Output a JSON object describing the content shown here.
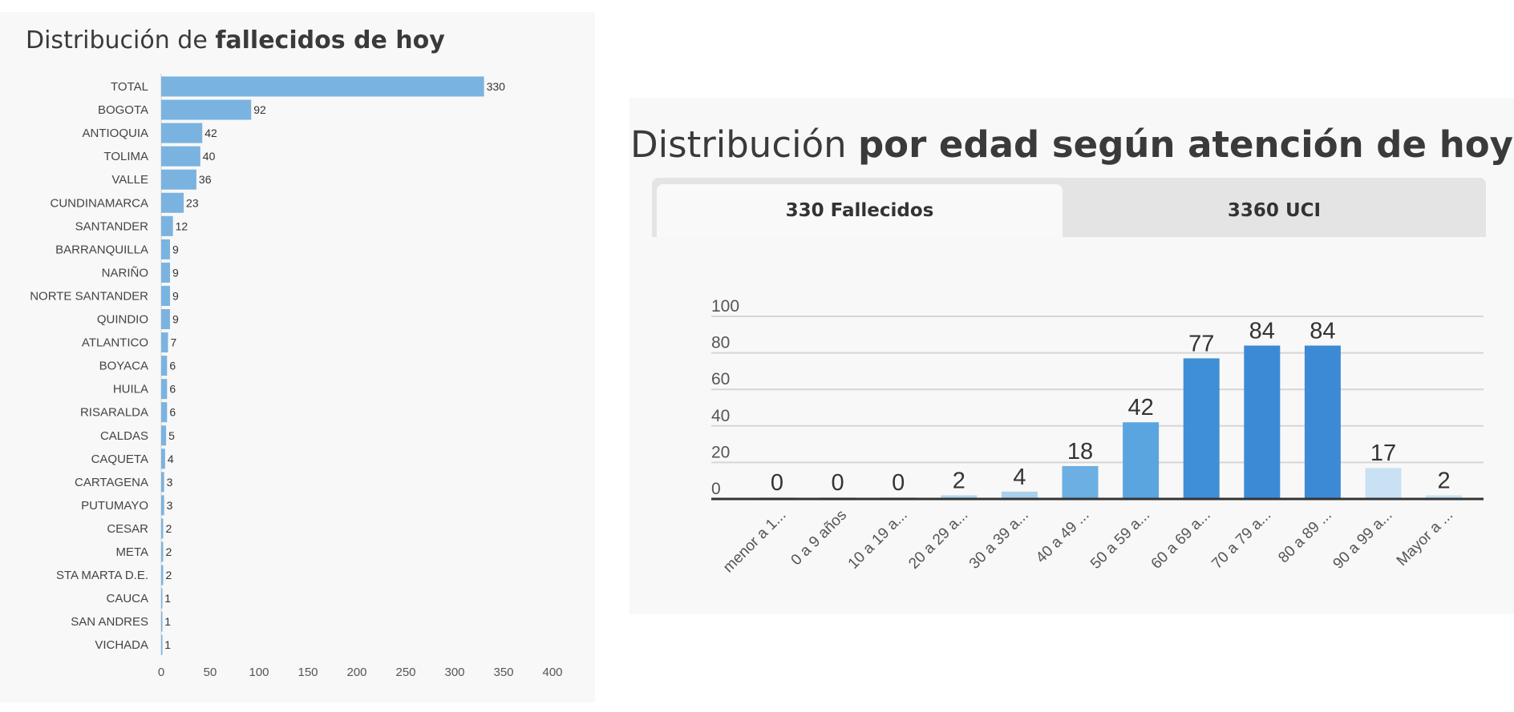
{
  "left": {
    "title_regular": "Distribución de ",
    "title_bold": "fallecidos de hoy"
  },
  "right": {
    "title_regular": "Distribución ",
    "title_bold": "por edad según atención de hoy",
    "tabs": [
      {
        "label": "330 Fallecidos",
        "active": true
      },
      {
        "label": "3360 UCI",
        "active": false
      }
    ]
  },
  "chart_data": [
    {
      "type": "bar",
      "orientation": "horizontal",
      "title": "Distribución de fallecidos de hoy",
      "categories": [
        "TOTAL",
        "BOGOTA",
        "ANTIOQUIA",
        "TOLIMA",
        "VALLE",
        "CUNDINAMARCA",
        "SANTANDER",
        "BARRANQUILLA",
        "NARIÑO",
        "NORTE SANTANDER",
        "QUINDIO",
        "ATLANTICO",
        "BOYACA",
        "HUILA",
        "RISARALDA",
        "CALDAS",
        "CAQUETA",
        "CARTAGENA",
        "PUTUMAYO",
        "CESAR",
        "META",
        "STA MARTA D.E.",
        "CAUCA",
        "SAN ANDRES",
        "VICHADA"
      ],
      "values": [
        330,
        92,
        42,
        40,
        36,
        23,
        12,
        9,
        9,
        9,
        9,
        7,
        6,
        6,
        6,
        5,
        4,
        3,
        3,
        2,
        2,
        2,
        1,
        1,
        1
      ],
      "xlim": [
        0,
        400
      ],
      "xticks": [
        0,
        50,
        100,
        150,
        200,
        250,
        300,
        350,
        400
      ],
      "grid": false,
      "color": "#7ab3e0"
    },
    {
      "type": "bar",
      "title": "Distribución por edad según atención de hoy",
      "categories": [
        "menor a 1...",
        "0 a 9 años",
        "10 a 19 a...",
        "20 a 29 a...",
        "30 a 39 a...",
        "40 a 49 ...",
        "50 a 59 a...",
        "60 a 69 a...",
        "70 a 79 a...",
        "80 a 89 ...",
        "90 a 99 a...",
        "Mayor a ..."
      ],
      "values": [
        0,
        0,
        0,
        2,
        4,
        18,
        42,
        77,
        84,
        84,
        17,
        2
      ],
      "colors": [
        "#c9e2f3",
        "#c9e2f3",
        "#c9e2f3",
        "#b5d6ee",
        "#a9d0ec",
        "#6cafe2",
        "#5aa5e0",
        "#3f8fd6",
        "#3c8ad5",
        "#3c8ad5",
        "#c9e2f3",
        "#c9e2f3"
      ],
      "ylim": [
        0,
        100
      ],
      "yticks": [
        0,
        20,
        40,
        60,
        80,
        100
      ],
      "grid": true
    }
  ]
}
